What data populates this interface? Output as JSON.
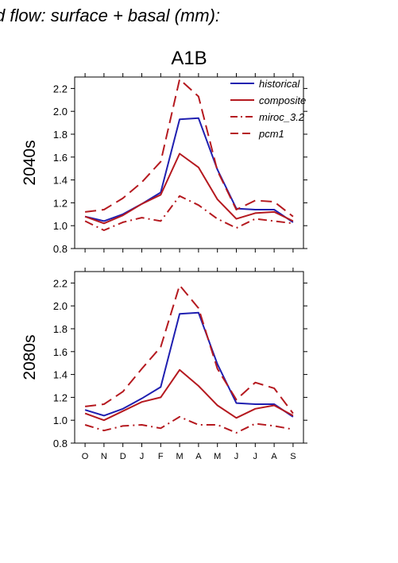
{
  "figure_title": "d flow: surface + basal (mm):",
  "scenario_title": "A1B",
  "colors": {
    "historical": "#1f1fb0",
    "composite": "#b5191f",
    "miroc_3.2": "#b5191f",
    "pcm1": "#b5191f"
  },
  "chart_data": [
    {
      "type": "line",
      "row_label": "2040s",
      "categories": [
        "O",
        "N",
        "D",
        "J",
        "F",
        "M",
        "A",
        "M",
        "J",
        "J",
        "A",
        "S"
      ],
      "ylim": [
        0.8,
        2.3
      ],
      "yticks": [
        "0.8",
        "1.0",
        "1.2",
        "1.4",
        "1.6",
        "1.8",
        "2.0",
        "2.2"
      ],
      "show_x_labels": false,
      "legend": {
        "placement": "top-right",
        "entries": [
          "historical",
          "composite",
          "miroc_3.2",
          "pcm1"
        ]
      },
      "series": [
        {
          "name": "historical",
          "style": "solid",
          "color": "#1f1fb0",
          "values": [
            1.08,
            1.04,
            1.1,
            1.19,
            1.29,
            1.93,
            1.94,
            1.49,
            1.15,
            1.14,
            1.14,
            1.03
          ]
        },
        {
          "name": "composite",
          "style": "solid",
          "color": "#b5191f",
          "values": [
            1.08,
            1.02,
            1.09,
            1.19,
            1.27,
            1.63,
            1.51,
            1.23,
            1.06,
            1.11,
            1.12,
            1.04
          ]
        },
        {
          "name": "miroc_3.2",
          "style": "dashdot",
          "color": "#b5191f",
          "values": [
            1.04,
            0.96,
            1.03,
            1.07,
            1.04,
            1.26,
            1.18,
            1.06,
            0.98,
            1.06,
            1.04,
            1.02
          ]
        },
        {
          "name": "pcm1",
          "style": "dash",
          "color": "#b5191f",
          "values": [
            1.12,
            1.14,
            1.24,
            1.38,
            1.56,
            2.28,
            2.13,
            1.48,
            1.14,
            1.22,
            1.21,
            1.08
          ]
        }
      ]
    },
    {
      "type": "line",
      "row_label": "2080s",
      "categories": [
        "O",
        "N",
        "D",
        "J",
        "F",
        "M",
        "A",
        "M",
        "J",
        "J",
        "A",
        "S"
      ],
      "ylim": [
        0.8,
        2.3
      ],
      "yticks": [
        "0.8",
        "1.0",
        "1.2",
        "1.4",
        "1.6",
        "1.8",
        "2.0",
        "2.2"
      ],
      "show_x_labels": true,
      "series": [
        {
          "name": "historical",
          "style": "solid",
          "color": "#1f1fb0",
          "values": [
            1.09,
            1.04,
            1.1,
            1.19,
            1.29,
            1.93,
            1.94,
            1.49,
            1.15,
            1.14,
            1.14,
            1.03
          ]
        },
        {
          "name": "composite",
          "style": "solid",
          "color": "#b5191f",
          "values": [
            1.06,
            1.0,
            1.08,
            1.16,
            1.2,
            1.44,
            1.3,
            1.13,
            1.02,
            1.1,
            1.13,
            1.04
          ]
        },
        {
          "name": "miroc_3.2",
          "style": "dashdot",
          "color": "#b5191f",
          "values": [
            0.96,
            0.91,
            0.95,
            0.96,
            0.93,
            1.03,
            0.96,
            0.96,
            0.89,
            0.97,
            0.95,
            0.92
          ]
        },
        {
          "name": "pcm1",
          "style": "dash",
          "color": "#b5191f",
          "values": [
            1.12,
            1.14,
            1.25,
            1.45,
            1.64,
            2.18,
            1.98,
            1.45,
            1.18,
            1.33,
            1.28,
            1.06
          ]
        }
      ]
    }
  ]
}
